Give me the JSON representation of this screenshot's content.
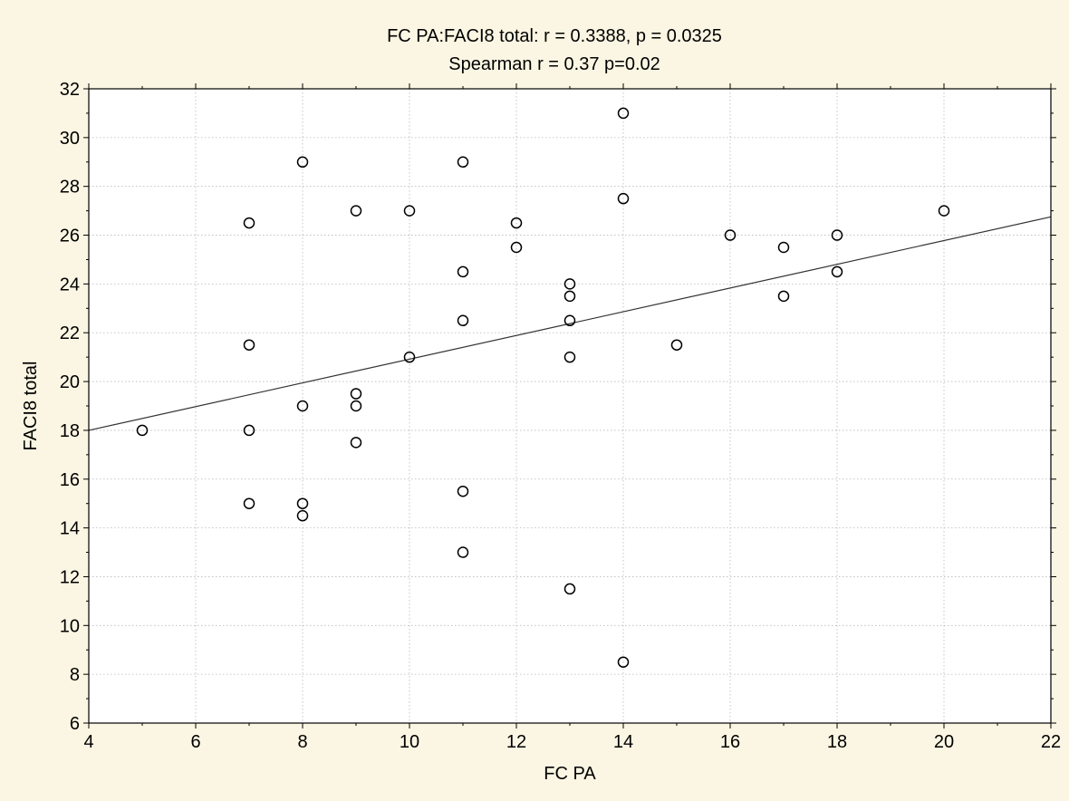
{
  "chart_data": {
    "type": "scatter",
    "title": "FC PA:FACI8 total:   r = 0.3388, p = 0.0325",
    "subtitle": "Spearman r = 0.37 p=0.02",
    "xlabel": "FC PA",
    "ylabel": "FACI8 total",
    "xlim": [
      4,
      22
    ],
    "ylim": [
      6,
      32
    ],
    "xticks": [
      4,
      6,
      8,
      10,
      12,
      14,
      16,
      18,
      20,
      22
    ],
    "yticks": [
      6,
      8,
      10,
      12,
      14,
      16,
      18,
      20,
      22,
      24,
      26,
      28,
      30,
      32
    ],
    "grid": true,
    "colors": {
      "background": "#fbf6e3",
      "plot_area": "#ffffff",
      "grid": "#b8b8b8",
      "points": "#000000",
      "fit_line": "#333333"
    },
    "regression_line": {
      "x": [
        4,
        22
      ],
      "y": [
        18.0,
        26.75
      ]
    },
    "points": [
      {
        "x": 5,
        "y": 18
      },
      {
        "x": 7,
        "y": 26.5
      },
      {
        "x": 7,
        "y": 21.5
      },
      {
        "x": 7,
        "y": 18
      },
      {
        "x": 7,
        "y": 15
      },
      {
        "x": 8,
        "y": 29
      },
      {
        "x": 8,
        "y": 19
      },
      {
        "x": 8,
        "y": 15
      },
      {
        "x": 8,
        "y": 14.5
      },
      {
        "x": 9,
        "y": 27
      },
      {
        "x": 9,
        "y": 19.5
      },
      {
        "x": 9,
        "y": 19
      },
      {
        "x": 9,
        "y": 17.5
      },
      {
        "x": 10,
        "y": 27
      },
      {
        "x": 10,
        "y": 21
      },
      {
        "x": 11,
        "y": 29
      },
      {
        "x": 11,
        "y": 24.5
      },
      {
        "x": 11,
        "y": 22.5
      },
      {
        "x": 11,
        "y": 15.5
      },
      {
        "x": 11,
        "y": 13
      },
      {
        "x": 12,
        "y": 26.5
      },
      {
        "x": 12,
        "y": 25.5
      },
      {
        "x": 13,
        "y": 24
      },
      {
        "x": 13,
        "y": 23.5
      },
      {
        "x": 13,
        "y": 22.5
      },
      {
        "x": 13,
        "y": 21
      },
      {
        "x": 13,
        "y": 11.5
      },
      {
        "x": 14,
        "y": 31
      },
      {
        "x": 14,
        "y": 27.5
      },
      {
        "x": 14,
        "y": 8.5
      },
      {
        "x": 15,
        "y": 21.5
      },
      {
        "x": 16,
        "y": 26
      },
      {
        "x": 17,
        "y": 25.5
      },
      {
        "x": 17,
        "y": 23.5
      },
      {
        "x": 18,
        "y": 26
      },
      {
        "x": 18,
        "y": 24.5
      },
      {
        "x": 20,
        "y": 27
      }
    ]
  }
}
